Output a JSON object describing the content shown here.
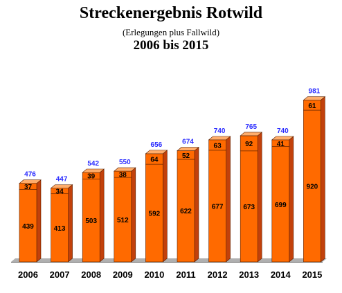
{
  "chart_data": {
    "type": "bar",
    "title": "Streckenergebnis Rotwild",
    "subtitle": "(Erlegungen plus Fallwild)",
    "period": "2006 bis 2015",
    "categories": [
      "2006",
      "2007",
      "2008",
      "2009",
      "2010",
      "2011",
      "2012",
      "2013",
      "2014",
      "2015"
    ],
    "series": [
      {
        "values": [
          439,
          413,
          503,
          512,
          592,
          622,
          677,
          673,
          699,
          920
        ]
      },
      {
        "values": [
          37,
          34,
          39,
          38,
          64,
          52,
          63,
          92,
          41,
          61
        ]
      }
    ],
    "totals": [
      476,
      447,
      542,
      550,
      656,
      674,
      740,
      765,
      740,
      981
    ],
    "stacked": true,
    "ylim": [
      0,
      1000
    ],
    "grid": false,
    "legend": "none",
    "colors": {
      "bar_front": "#ff6a00",
      "bar_top": "#ffad6b",
      "bar_side": "#c2410b",
      "totals_text": "#2a2cff",
      "floor": "#b0b0b0"
    }
  }
}
